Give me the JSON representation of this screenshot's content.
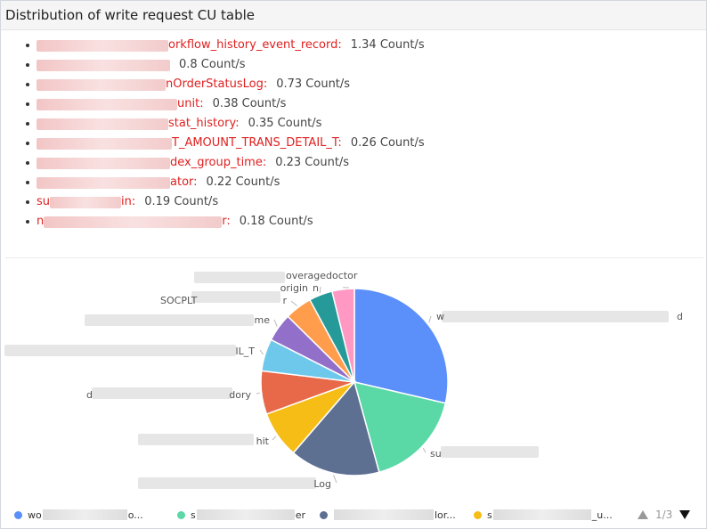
{
  "panel": {
    "title": "Distribution of write request CU table"
  },
  "items": [
    {
      "name": "orkflow_history_event_record:",
      "value": "1.34 Count/s",
      "mask": 148
    },
    {
      "name": "",
      "value": "0.8 Count/s",
      "mask": 150
    },
    {
      "name": "nOrderStatusLog:",
      "value": "0.73 Count/s",
      "mask": 145
    },
    {
      "name": "unit:",
      "value": "0.38 Count/s",
      "mask": 158
    },
    {
      "name": "stat_history:",
      "value": "0.35 Count/s",
      "mask": 148
    },
    {
      "name": "T_AMOUNT_TRANS_DETAIL_T:",
      "value": "0.26 Count/s",
      "mask": 152
    },
    {
      "name": "dex_group_time:",
      "value": "0.23 Count/s",
      "mask": 150
    },
    {
      "name": "ator:",
      "value": "0.22 Count/s",
      "mask": 150
    },
    {
      "name": "su",
      "name2": "in:",
      "value": "0.19 Count/s",
      "mask": 80
    },
    {
      "name": "n",
      "name2": "r:",
      "value": "0.18 Count/s",
      "mask": 200
    }
  ],
  "chart_data": {
    "type": "pie",
    "values": [
      1.34,
      0.8,
      0.73,
      0.38,
      0.35,
      0.26,
      0.23,
      0.22,
      0.19,
      0.18
    ],
    "colors": [
      "#5b8ff9",
      "#5ad8a6",
      "#5d7092",
      "#f6bd16",
      "#e8684a",
      "#6dc8ec",
      "#9270ca",
      "#ff9d4d",
      "#269a99",
      "#ff99c3"
    ],
    "labels": [
      "w",
      "su",
      "Log",
      "hit",
      "dory",
      "IL_T",
      "me",
      "r",
      "origin",
      "overagedoctor"
    ],
    "label_extra": [
      "d",
      "",
      "",
      "",
      "",
      "",
      "",
      "",
      "",
      "n"
    ],
    "label_prefix": [
      "",
      "",
      "",
      "",
      "d",
      "",
      "",
      "SOCPLT",
      "",
      ""
    ]
  },
  "legend": {
    "items": [
      {
        "text_start": "wo",
        "text_end": "o...",
        "color": "#5b8ff9"
      },
      {
        "text_start": "s",
        "text_end": "er",
        "color": "#5ad8a6"
      },
      {
        "text_start": "",
        "text_end": "lor...",
        "color": "#5d7092"
      },
      {
        "text_start": "s",
        "text_end": "_u...",
        "color": "#f6bd16"
      }
    ],
    "page": "1/3"
  }
}
